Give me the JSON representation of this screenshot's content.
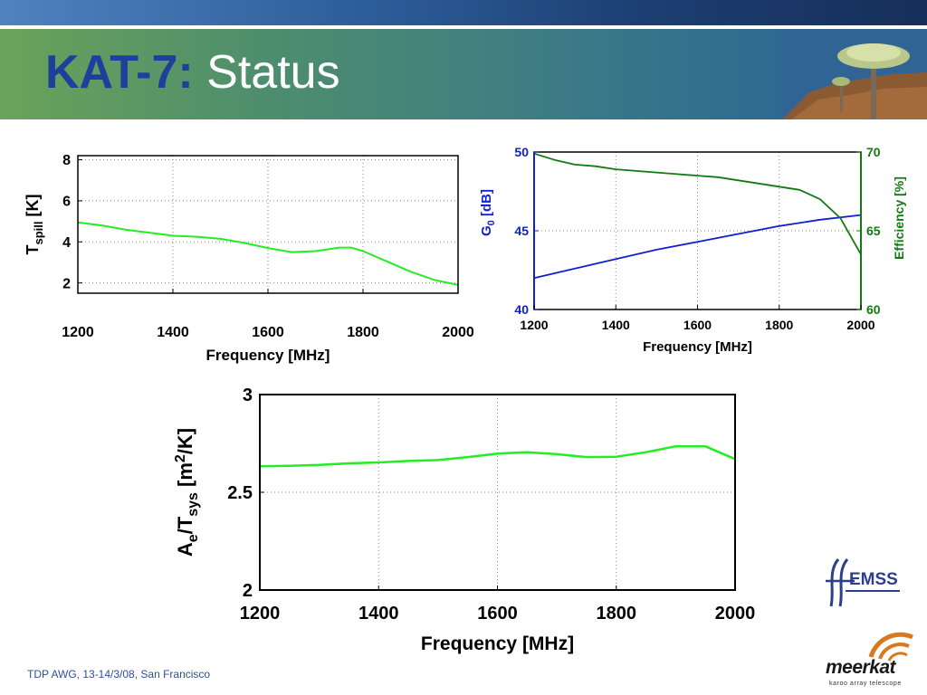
{
  "slide": {
    "title_bold": "KAT-7:",
    "title_rest": "Status",
    "footer": "TDP AWG, 13-14/3/08, San Francisco",
    "logos": {
      "emss": "EMSS",
      "meerkat": "meerkat",
      "meerkat_tagline": "karoo array telescope"
    },
    "colors": {
      "title_accent": "#1f3f9c",
      "green_curve": "#22ee22",
      "blue_curve": "#1020d0",
      "dark_green_curve": "#137a13"
    }
  },
  "chart_data": [
    {
      "type": "line",
      "xlabel": "Frequency [MHz]",
      "ylabel_main": "T",
      "ylabel_sub": "spill",
      "ylabel_tail": " [K]",
      "xlim": [
        1200,
        2000
      ],
      "ylim": [
        1.5,
        8.2
      ],
      "xticks": [
        1200,
        1400,
        1600,
        1800,
        2000
      ],
      "yticks": [
        2,
        4,
        6,
        8
      ],
      "grid": true,
      "series": [
        {
          "color": "#22ee22",
          "x": [
            1200,
            1250,
            1300,
            1350,
            1400,
            1450,
            1500,
            1550,
            1600,
            1650,
            1700,
            1750,
            1775,
            1800,
            1850,
            1900,
            1950,
            2000
          ],
          "y": [
            4.95,
            4.8,
            4.6,
            4.45,
            4.3,
            4.25,
            4.15,
            3.95,
            3.7,
            3.5,
            3.55,
            3.72,
            3.72,
            3.55,
            3.05,
            2.55,
            2.15,
            1.9
          ]
        }
      ]
    },
    {
      "type": "line",
      "xlabel": "Frequency [MHz]",
      "ylabel_main": "G",
      "ylabel_sub": "0",
      "ylabel_tail": " [dB]",
      "y2label": "Efficiency [%]",
      "xlim": [
        1200,
        2000
      ],
      "ylim": [
        40,
        50
      ],
      "y2lim": [
        60,
        70
      ],
      "xticks": [
        1200,
        1400,
        1600,
        1800,
        2000
      ],
      "yticks": [
        40,
        45,
        50
      ],
      "y2ticks": [
        60,
        65,
        70
      ],
      "grid": true,
      "series": [
        {
          "axis": "left",
          "color": "#1020d0",
          "x": [
            1200,
            1300,
            1400,
            1500,
            1600,
            1700,
            1800,
            1900,
            2000
          ],
          "y": [
            42.0,
            42.6,
            43.2,
            43.8,
            44.3,
            44.8,
            45.3,
            45.7,
            46.0
          ]
        },
        {
          "axis": "right",
          "color": "#137a13",
          "x": [
            1200,
            1250,
            1300,
            1350,
            1400,
            1450,
            1500,
            1550,
            1600,
            1650,
            1700,
            1750,
            1800,
            1850,
            1900,
            1950,
            2000
          ],
          "y": [
            69.9,
            69.5,
            69.2,
            69.1,
            68.9,
            68.8,
            68.7,
            68.6,
            68.5,
            68.4,
            68.2,
            68.0,
            67.8,
            67.6,
            67.0,
            65.8,
            63.5
          ]
        }
      ]
    },
    {
      "type": "line",
      "xlabel": "Frequency [MHz]",
      "ylabel_a": "A",
      "ylabel_a_sub": "e",
      "ylabel_slash": "/T",
      "ylabel_t_sub": "sys",
      "ylabel_unit": " [m",
      "ylabel_sup": "2",
      "ylabel_tail": "/K]",
      "xlim": [
        1200,
        2000
      ],
      "ylim": [
        2,
        3
      ],
      "xticks": [
        1200,
        1400,
        1600,
        1800,
        2000
      ],
      "yticks": [
        2,
        2.5,
        3
      ],
      "yticklabels": [
        "2",
        "2.5",
        "3"
      ],
      "grid": true,
      "series": [
        {
          "color": "#22ee22",
          "x": [
            1200,
            1250,
            1300,
            1350,
            1400,
            1450,
            1500,
            1550,
            1600,
            1650,
            1700,
            1750,
            1800,
            1850,
            1900,
            1950,
            2000
          ],
          "y": [
            2.633,
            2.635,
            2.64,
            2.648,
            2.653,
            2.66,
            2.665,
            2.68,
            2.698,
            2.705,
            2.695,
            2.68,
            2.682,
            2.705,
            2.735,
            2.735,
            2.67
          ]
        }
      ]
    }
  ]
}
